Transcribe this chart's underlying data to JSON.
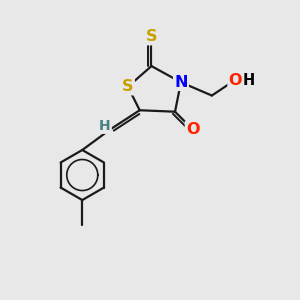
{
  "bg_color": "#e8e8e8",
  "atom_colors": {
    "S_thione": "#c8a000",
    "S_ring": "#c8a000",
    "N": "#0000ff",
    "O": "#ff2200",
    "H": "#4a8080",
    "C": "#000000"
  },
  "bond_color": "#1a1a1a",
  "bond_width": 1.6,
  "figsize": [
    3.0,
    3.0
  ],
  "dpi": 100,
  "bg_hex": "#e8e8e8"
}
